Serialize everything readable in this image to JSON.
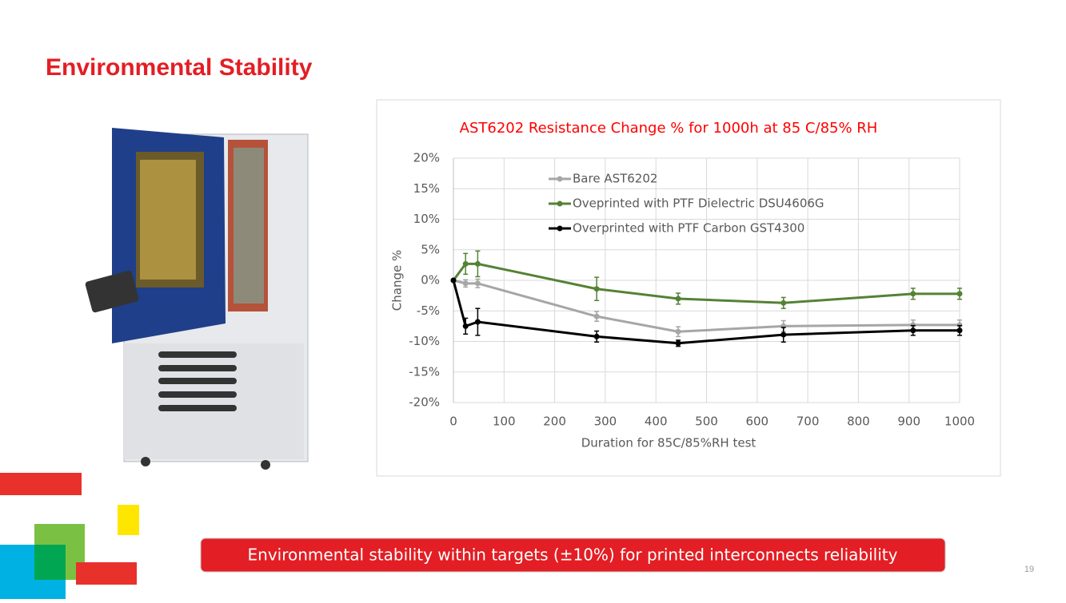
{
  "slide_title": "Environmental Stability",
  "banner": "Environmental stability within targets (±10%) for printed interconnects reliability",
  "page_number": "19",
  "chart_data": {
    "type": "line",
    "title": "AST6202 Resistance Change % for 1000h at 85 C/85% RH",
    "x_label": "Duration for 85C/85%RH test",
    "y_label": "Change %",
    "x": [
      0,
      24,
      48,
      283,
      444,
      652,
      908,
      1000
    ],
    "series": [
      {
        "name": "Bare AST6202",
        "color": "#a6a6a6",
        "values": [
          0,
          -0.5,
          -0.5,
          -5.9,
          -8.4,
          -7.5,
          -7.3,
          -7.3
        ],
        "errors": [
          0,
          0.6,
          0.7,
          0.8,
          0.8,
          0.9,
          0.8,
          0.8
        ]
      },
      {
        "name": "Oveprinted with PTF Dielectric DSU4606G",
        "color": "#548235",
        "values": [
          0,
          2.7,
          2.7,
          -1.4,
          -3.0,
          -3.7,
          -2.2,
          -2.2
        ],
        "errors": [
          0,
          1.7,
          2.1,
          1.9,
          0.9,
          0.9,
          0.9,
          0.9
        ]
      },
      {
        "name": "Overprinted with PTF Carbon GST4300",
        "color": "#000000",
        "values": [
          0,
          -7.5,
          -6.8,
          -9.2,
          -10.3,
          -8.9,
          -8.2,
          -8.2
        ],
        "errors": [
          0,
          1.3,
          2.2,
          0.9,
          0.5,
          1.2,
          0.8,
          0.8
        ]
      }
    ],
    "xlim": [
      0,
      1000
    ],
    "xticks": [
      0,
      100,
      200,
      300,
      400,
      500,
      600,
      700,
      800,
      900,
      1000
    ],
    "ylim": [
      -20,
      20
    ],
    "yticks": [
      {
        "value": -20,
        "label": "-20%"
      },
      {
        "value": -15,
        "label": "-15%"
      },
      {
        "value": -10,
        "label": "-10%"
      },
      {
        "value": -5,
        "label": "-5%"
      },
      {
        "value": 0,
        "label": "0%"
      },
      {
        "value": 5,
        "label": "5%"
      },
      {
        "value": 10,
        "label": "10%"
      },
      {
        "value": 15,
        "label": "15%"
      },
      {
        "value": 20,
        "label": "20%"
      }
    ],
    "grid": true,
    "legend": "upper left"
  }
}
